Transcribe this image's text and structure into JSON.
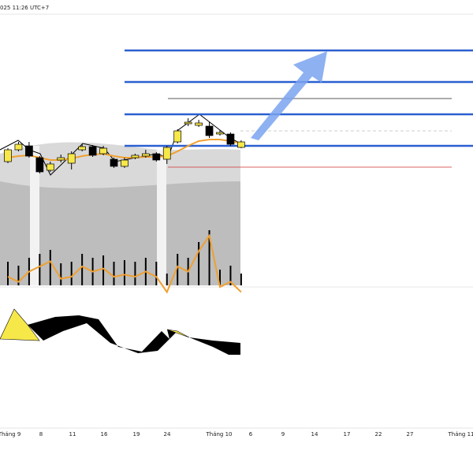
{
  "chart_data": {
    "type": "candlestick",
    "header": "025 11:26 UTC+7",
    "x_labels": [
      "Tháng 9",
      "8",
      "11",
      "16",
      "19",
      "24",
      "Tháng 10",
      "6",
      "9",
      "14",
      "17",
      "22",
      "27",
      "Tháng 11"
    ],
    "ylim": [
      0,
      200
    ],
    "colors": {
      "up": "#f7e84a",
      "down": "#000000",
      "ma": "#f0a030",
      "level": "#2a5fd0"
    },
    "open": [
      35,
      50,
      55,
      40,
      24,
      37,
      33,
      50,
      54,
      45,
      38,
      29,
      40,
      42,
      45,
      38,
      60,
      83,
      81,
      80,
      70,
      70,
      53
    ],
    "high": [
      52,
      60,
      60,
      42,
      35,
      44,
      48,
      58,
      56,
      55,
      40,
      40,
      45,
      50,
      47,
      55,
      76,
      90,
      88,
      85,
      75,
      72,
      62
    ],
    "low": [
      33,
      48,
      40,
      20,
      22,
      34,
      25,
      48,
      41,
      43,
      27,
      27,
      38,
      40,
      35,
      32,
      58,
      80,
      79,
      65,
      68,
      55,
      52
    ],
    "close": [
      50,
      57,
      42,
      22,
      32,
      40,
      45,
      54,
      43,
      52,
      29,
      37,
      43,
      45,
      37,
      53,
      74,
      85,
      84,
      68,
      72,
      57,
      60
    ],
    "ma": [
      40,
      42,
      43,
      40,
      37,
      37,
      39,
      42,
      44,
      45,
      42,
      40,
      40,
      41,
      41,
      42,
      48,
      55,
      61,
      63,
      63,
      61,
      58
    ],
    "volume": [
      30,
      25,
      35,
      40,
      45,
      28,
      30,
      40,
      35,
      38,
      30,
      32,
      30,
      35,
      30,
      15,
      40,
      35,
      55,
      70,
      20,
      25,
      15
    ],
    "volume_ylim": [
      0,
      100
    ],
    "levels": [
      176,
      136,
      95,
      55
    ],
    "black_level": 115,
    "red_level": 28
  }
}
